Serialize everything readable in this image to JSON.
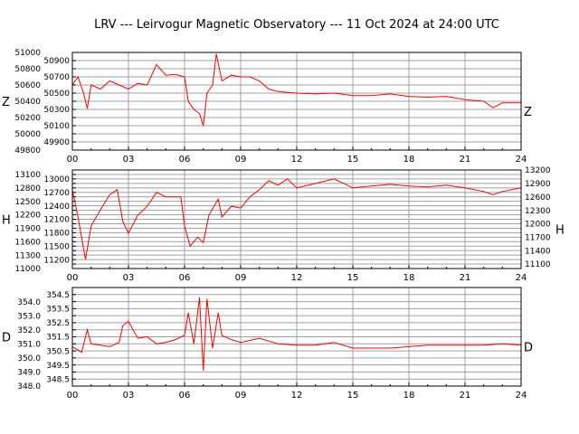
{
  "title": "LRV --- Leirvogur Magnetic Observatory --- 11 Oct 2024 at 24:00 UTC",
  "colors": {
    "trace": "#ff0000",
    "grid": "#a0a0a0",
    "axis": "#000000"
  },
  "chart_data": [
    {
      "type": "line",
      "component": "Z",
      "xlim": [
        0,
        24
      ],
      "xticks": [
        "00",
        "03",
        "06",
        "09",
        "12",
        "15",
        "18",
        "21",
        "24"
      ],
      "ylim": [
        49800,
        51000
      ],
      "yticks": [
        "49800",
        "49900",
        "50000",
        "50100",
        "50200",
        "50300",
        "50400",
        "50500",
        "50600",
        "50700",
        "50800",
        "50900",
        "51000"
      ],
      "grid": true,
      "x": [
        0,
        0.3,
        0.6,
        0.8,
        1,
        1.5,
        2,
        2.5,
        3,
        3.5,
        4,
        4.5,
        5,
        5.5,
        6,
        6.2,
        6.5,
        6.8,
        7,
        7.2,
        7.5,
        7.7,
        8,
        8.5,
        9,
        9.5,
        10,
        10.5,
        11,
        12,
        13,
        14,
        15,
        16,
        17,
        18,
        19,
        20,
        21,
        22,
        22.5,
        23,
        24
      ],
      "y": [
        50600,
        50700,
        50500,
        50310,
        50600,
        50550,
        50650,
        50600,
        50550,
        50620,
        50600,
        50850,
        50720,
        50730,
        50700,
        50400,
        50300,
        50250,
        50100,
        50500,
        50600,
        50980,
        50650,
        50720,
        50700,
        50700,
        50650,
        50550,
        50520,
        50500,
        50490,
        50500,
        50470,
        50470,
        50490,
        50460,
        50450,
        50460,
        50420,
        50400,
        50320,
        50380,
        50380
      ]
    },
    {
      "type": "line",
      "component": "H",
      "xlim": [
        0,
        24
      ],
      "xticks": [
        "00",
        "03",
        "06",
        "09",
        "12",
        "15",
        "18",
        "21",
        "24"
      ],
      "ylim": [
        11000,
        13200
      ],
      "yticks": [
        "11000",
        "11100",
        "11200",
        "11300",
        "11400",
        "11500",
        "11600",
        "11700",
        "11800",
        "11900",
        "12000",
        "12100",
        "12200",
        "12300",
        "12400",
        "12500",
        "12600",
        "12700",
        "12800",
        "12900",
        "13000",
        "13100",
        "13200"
      ],
      "grid": true,
      "x": [
        0,
        0.3,
        0.7,
        1,
        1.5,
        2,
        2.4,
        2.7,
        3,
        3.5,
        4,
        4.5,
        5,
        5.8,
        6,
        6.3,
        6.7,
        7,
        7.3,
        7.8,
        8,
        8.5,
        9,
        9.5,
        10,
        10.5,
        11,
        11.5,
        12,
        13,
        14,
        15,
        16,
        17,
        18,
        19,
        20,
        21,
        22,
        22.5,
        23,
        24
      ],
      "y": [
        12760,
        12150,
        11200,
        11950,
        12310,
        12650,
        12760,
        12050,
        11790,
        12190,
        12390,
        12700,
        12600,
        12600,
        11950,
        11500,
        11700,
        11580,
        12190,
        12550,
        12150,
        12390,
        12350,
        12600,
        12760,
        12960,
        12860,
        13000,
        12800,
        12900,
        13000,
        12800,
        12840,
        12880,
        12840,
        12820,
        12860,
        12800,
        12720,
        12650,
        12720,
        12800
      ]
    },
    {
      "type": "line",
      "component": "D",
      "xlim": [
        0,
        24
      ],
      "xticks": [
        "00",
        "03",
        "06",
        "09",
        "12",
        "15",
        "18",
        "21",
        "24"
      ],
      "ylim": [
        348.0,
        355.0
      ],
      "yticks": [
        "348.0",
        "348.5",
        "349.0",
        "349.5",
        "350.0",
        "350.5",
        "351.0",
        "351.5",
        "352.0",
        "352.5",
        "353.0",
        "353.5",
        "354.0",
        "354.5"
      ],
      "grid": true,
      "x": [
        0,
        0.5,
        0.8,
        1,
        1.5,
        2,
        2.5,
        2.7,
        3,
        3.5,
        4,
        4.5,
        5,
        5.5,
        6,
        6.2,
        6.5,
        6.8,
        7,
        7.2,
        7.5,
        7.8,
        8,
        8.5,
        9,
        10,
        11,
        12,
        13,
        14,
        15,
        16,
        17,
        18,
        19,
        20,
        21,
        22,
        23,
        24
      ],
      "y": [
        350.8,
        350.4,
        352.0,
        351.0,
        350.9,
        350.8,
        351.1,
        352.3,
        352.6,
        351.4,
        351.5,
        351.0,
        351.1,
        351.3,
        351.6,
        353.2,
        351.0,
        354.3,
        349.1,
        354.2,
        350.7,
        353.2,
        351.6,
        351.3,
        351.1,
        351.4,
        351.0,
        350.9,
        350.9,
        351.1,
        350.7,
        350.7,
        350.7,
        350.8,
        350.9,
        350.9,
        350.9,
        350.9,
        351.0,
        350.9
      ]
    }
  ]
}
